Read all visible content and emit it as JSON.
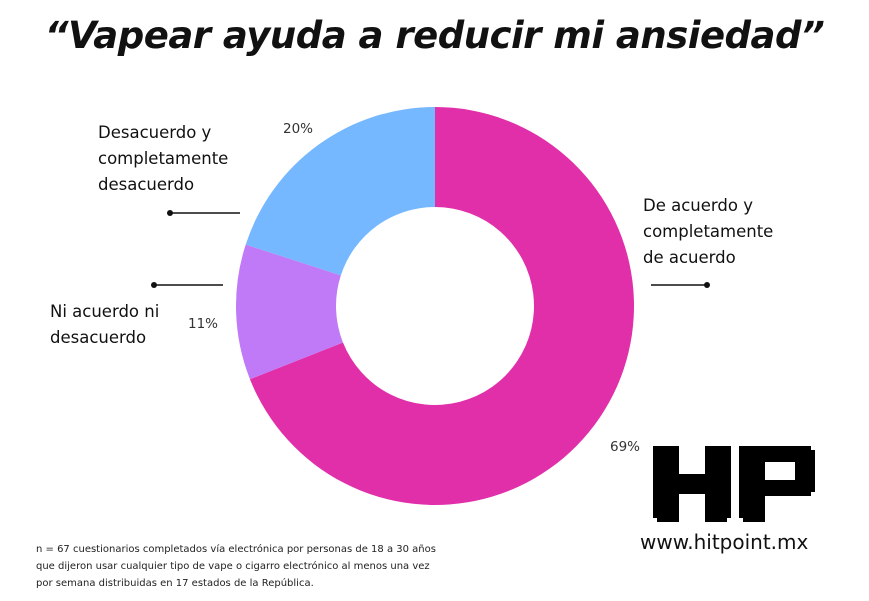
{
  "title": "“Vapear ayuda a reducir mi ansiedad”",
  "chart_data": {
    "type": "pie",
    "donut": true,
    "title": "“Vapear ayuda a reducir mi ansiedad”",
    "categories": [
      "De acuerdo y completamente de acuerdo",
      "Ni acuerdo ni desacuerdo",
      "Desacuerdo y completamente desacuerdo"
    ],
    "values": [
      69,
      11,
      20
    ],
    "value_labels": [
      "69%",
      "11%",
      "20%"
    ],
    "colors": [
      "#e12faa",
      "#c07af7",
      "#75b8ff"
    ],
    "label_lines": {
      "acuerdo": [
        "De acuerdo y",
        "completamente",
        "de acuerdo"
      ],
      "neutral": [
        "Ni acuerdo ni",
        "desacuerdo"
      ],
      "desacuerdo": [
        "Desacuerdo y",
        "completamente",
        "desacuerdo"
      ]
    },
    "legend": "none",
    "grid": false
  },
  "footnote": "n = 67 cuestionarios completados vía electrónica por personas de 18 a 30 años que dijeron usar cualquier tipo de vape o cigarro electrónico al menos una vez por semana distribuidas en 17 estados de la República.",
  "logo": {
    "text": "HP",
    "color": "#000000"
  },
  "website": "www.hitpoint.mx"
}
